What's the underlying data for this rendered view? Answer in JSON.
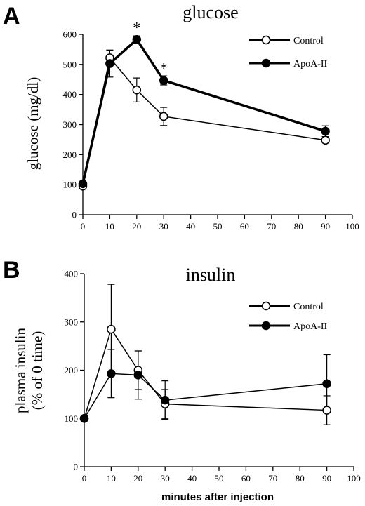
{
  "chart_data": [
    {
      "type": "line",
      "panel_label": "A",
      "title": "glucose",
      "ylabel": "glucose (mg/dl)",
      "xlabel": "",
      "xlim": [
        0,
        100
      ],
      "ylim": [
        0,
        600
      ],
      "x_ticks": [
        0,
        10,
        20,
        30,
        40,
        50,
        60,
        70,
        80,
        90,
        100
      ],
      "y_ticks": [
        0,
        100,
        200,
        300,
        400,
        500,
        600
      ],
      "legend_position": "top-right",
      "series": [
        {
          "name": "Control",
          "marker": "open-circle",
          "line_width": 1.5,
          "points": [
            {
              "x": 0,
              "y": 95,
              "err": 0
            },
            {
              "x": 10,
              "y": 522,
              "err": 25
            },
            {
              "x": 20,
              "y": 415,
              "err": 40
            },
            {
              "x": 30,
              "y": 327,
              "err": 30
            },
            {
              "x": 90,
              "y": 248,
              "err": 0
            }
          ]
        },
        {
          "name": "ApoA-II",
          "marker": "filled-circle",
          "line_width": 3.5,
          "points": [
            {
              "x": 0,
              "y": 103,
              "err": 0
            },
            {
              "x": 10,
              "y": 503,
              "err": 45
            },
            {
              "x": 20,
              "y": 583,
              "err": 12
            },
            {
              "x": 30,
              "y": 447,
              "err": 15
            },
            {
              "x": 90,
              "y": 278,
              "err": 18
            }
          ]
        }
      ],
      "annotations": [
        {
          "text": "*",
          "x": 20,
          "y": 583
        },
        {
          "text": "*",
          "x": 30,
          "y": 447
        }
      ]
    },
    {
      "type": "line",
      "panel_label": "B",
      "title": "insulin",
      "ylabel_line1": "plasma insulin",
      "ylabel_line2": "(% of 0 time)",
      "xlabel": "minutes after injection",
      "xlim": [
        0,
        100
      ],
      "ylim": [
        0,
        400
      ],
      "x_ticks": [
        0,
        10,
        20,
        30,
        40,
        50,
        60,
        70,
        80,
        90,
        100
      ],
      "y_ticks": [
        0,
        100,
        200,
        300,
        400
      ],
      "legend_position": "top-right",
      "series": [
        {
          "name": "Control",
          "marker": "open-circle",
          "line_width": 1.5,
          "points": [
            {
              "x": 0,
              "y": 100,
              "err": 5
            },
            {
              "x": 10,
              "y": 285,
              "err": 93
            },
            {
              "x": 20,
              "y": 200,
              "err": 40
            },
            {
              "x": 30,
              "y": 130,
              "err": 30
            },
            {
              "x": 90,
              "y": 117,
              "err": 30
            }
          ]
        },
        {
          "name": "ApoA-II",
          "marker": "filled-circle",
          "line_width": 1.5,
          "points": [
            {
              "x": 0,
              "y": 100,
              "err": 5
            },
            {
              "x": 10,
              "y": 193,
              "err": 50
            },
            {
              "x": 20,
              "y": 190,
              "err": 50
            },
            {
              "x": 30,
              "y": 138,
              "err": 40
            },
            {
              "x": 90,
              "y": 172,
              "err": 60
            }
          ]
        }
      ],
      "annotations": []
    }
  ]
}
